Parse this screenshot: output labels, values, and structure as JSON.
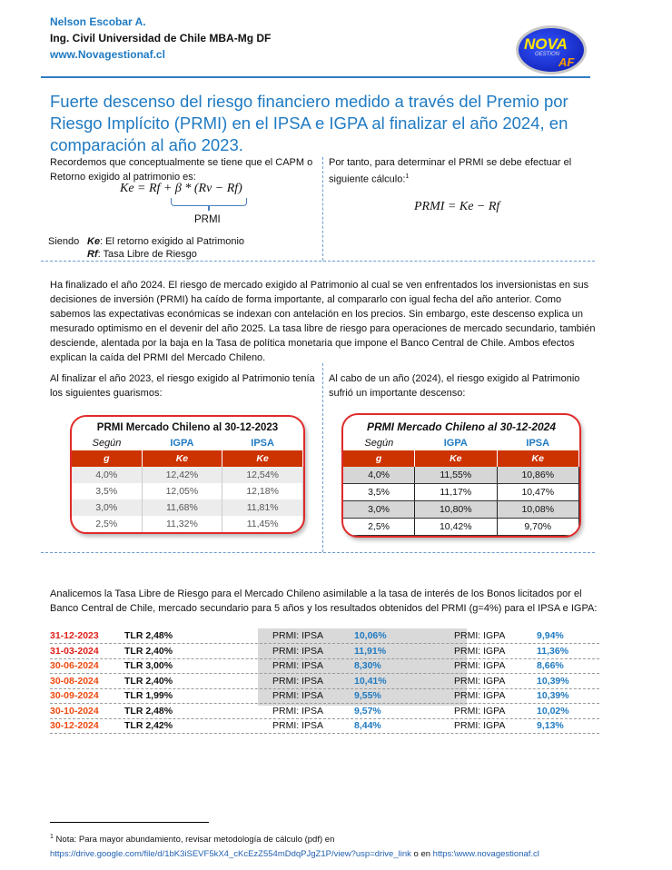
{
  "header": {
    "author": "Nelson Escobar A.",
    "credentials": "Ing. Civil Universidad de Chile MBA-Mg DF",
    "website": "www.Novagestionaf.cl",
    "logo_text": "NOVA GESTION AF"
  },
  "title": "Fuerte descenso del riesgo financiero medido a través del Premio por Riesgo Implícito (PRMI) en el IPSA e IGPA al finalizar el año 2024, en comparación al año 2023.",
  "intro": {
    "left_text": "Recordemos que conceptualmente se tiene que el CAPM o Retorno exigido al patrimonio es:",
    "formula": "Ke = Rf + β * (Rv − Rf)",
    "brace_label": "PRMI",
    "siendo": "Siendo",
    "def_ke_sym": "Ke",
    "def_ke": ": El retorno exigido al Patrimonio",
    "def_rf_sym": "Rf",
    "def_rf": ": Tasa Libre de Riesgo",
    "right_text": "Por tanto, para determinar el PRMI se debe efectuar el siguiente cálculo:",
    "footnote_mark": "1",
    "right_formula": "PRMI = Ke − Rf"
  },
  "paragraph": "Ha finalizado el año 2024. El riesgo de mercado exigido al Patrimonio al cual se ven enfrentados los inversionistas en sus decisiones de inversión (PRMI) ha caído de forma importante, al compararlo con igual fecha del año anterior. Como sabemos las expectativas económicas se indexan con antelación en los precios. Sin embargo, este descenso explica un mesurado optimismo en el devenir del año 2025. La tasa libre de riesgo para operaciones de mercado secundario, también desciende, alentada por la baja en la Tasa de política monetaria que impone el Banco Central de Chile. Ambos efectos explican la caída del PRMI del Mercado Chileno.",
  "compare": {
    "left_text": "Al finalizar el año 2023, el riesgo exigido al Patrimonio tenía los siguientes guarismos:",
    "right_text": "Al cabo de un año (2024), el riesgo exigido al Patrimonio sufrió un importante descenso:",
    "table_2023": {
      "caption": "PRMI Mercado Chileno al 30-12-2023",
      "labels": [
        "Según",
        "IGPA",
        "IPSA"
      ],
      "headers": [
        "g",
        "Ke",
        "Ke"
      ],
      "rows": [
        [
          "4,0%",
          "12,42%",
          "12,54%"
        ],
        [
          "3,5%",
          "12,05%",
          "12,18%"
        ],
        [
          "3,0%",
          "11,68%",
          "11,81%"
        ],
        [
          "2,5%",
          "11,32%",
          "11,45%"
        ]
      ]
    },
    "table_2024": {
      "caption": "PRMI Mercado Chileno al 30-12-2024",
      "labels": [
        "Según",
        "IGPA",
        "IPSA"
      ],
      "headers": [
        "g",
        "Ke",
        "Ke"
      ],
      "rows": [
        [
          "4,0%",
          "11,55%",
          "10,86%"
        ],
        [
          "3,5%",
          "11,17%",
          "10,47%"
        ],
        [
          "3,0%",
          "10,80%",
          "10,08%"
        ],
        [
          "2,5%",
          "10,42%",
          "9,70%"
        ]
      ]
    }
  },
  "analysis": "Analicemos la Tasa Libre de Riesgo para el Mercado Chileno asimilable a la tasa de interés de los Bonos licitados por el Banco Central de Chile, mercado secundario para 5 años y los resultados obtenidos del PRMI (g=4%) para el IPSA e IGPA:",
  "prmi_rows": [
    {
      "date": "31-12-2023",
      "tlr": "TLR 2,48%",
      "ipsa_label": "PRMI: IPSA",
      "ipsa": "10,06%",
      "igpa_label": "PRMI: IGPA",
      "igpa": "9,94%"
    },
    {
      "date": "31-03-2024",
      "tlr": "TLR 2,40%",
      "ipsa_label": "PRMI: IPSA",
      "ipsa": "11,91%",
      "igpa_label": "PRMI: IGPA",
      "igpa": "11,36%"
    },
    {
      "date": "30-06-2024",
      "tlr": "TLR 3,00%",
      "ipsa_label": "PRMI: IPSA",
      "ipsa": "8,30%",
      "igpa_label": "PRMI: IGPA",
      "igpa": "8,66%"
    },
    {
      "date": "30-08-2024",
      "tlr": "TLR 2,40%",
      "ipsa_label": "PRMI: IPSA",
      "ipsa": "10,41%",
      "igpa_label": "PRMI: IGPA",
      "igpa": "10,39%"
    },
    {
      "date": "30-09-2024",
      "tlr": "TLR 1,99%",
      "ipsa_label": "PRMI: IPSA",
      "ipsa": "9,55%",
      "igpa_label": "PRMI: IGPA",
      "igpa": "10,39%"
    },
    {
      "date": "30-10-2024",
      "tlr": "TLR 2,48%",
      "ipsa_label": "PRMI: IPSA",
      "ipsa": "9,57%",
      "igpa_label": "PRMI: IGPA",
      "igpa": "10,02%"
    },
    {
      "date": "30-12-2024",
      "tlr": "TLR 2,42%",
      "ipsa_label": "PRMI: IPSA",
      "ipsa": "8,44%",
      "igpa_label": "PRMI: IGPA",
      "igpa": "9,13%"
    }
  ],
  "footnote": {
    "mark": "1",
    "text": "Nota: Para mayor abundamiento, revisar metodología de cálculo (pdf) en",
    "link1": "https://drive.google.com/file/d/1bK3iSEVF5kX4_cKcEzZ554mDdqPJgZ1P/view?usp=drive_link",
    "connector": "o en",
    "link2": "https:\\www.novagestionaf.cl"
  }
}
